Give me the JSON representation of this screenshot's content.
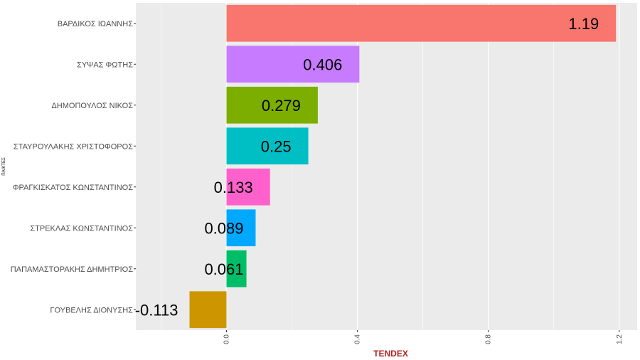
{
  "chart_data": {
    "type": "bar",
    "orientation": "horizontal",
    "title": "",
    "xlabel": "TENDEX",
    "ylabel": "ΠΑΙΚΤΕΣ",
    "xlim": [
      -0.113,
      1.19
    ],
    "x_ticks": [
      "0.0",
      "0.4",
      "0.8",
      "1.2"
    ],
    "x_tick_values": [
      0.0,
      0.4,
      0.8,
      1.2
    ],
    "grid": true,
    "legend": "none",
    "categories": [
      "ΒΑΡΔΙΚΟΣ ΙΩΑΝΝΗΣ",
      "ΣΥΨΑΣ ΦΩΤΗΣ",
      "ΔΗΜΟΠΟΥΛΟΣ ΝΙΚΟΣ",
      "ΣΤΑΥΡΟΥΛΑΚΗΣ ΧΡΙΣΤΟΦΟΡΟΣ",
      "ΦΡΑΓΚΙΣΚΑΤΟΣ ΚΩΝΣΤΑΝΤΙΝΟΣ",
      "ΣΤΡΕΚΛΑΣ ΚΩΝΣΤΑΝΤΙΝΟΣ",
      "ΠΑΠΑΜΑΣΤΟΡΑΚΗΣ ΔΗΜΗΤΡΙΟΣ",
      "ΓΟΥΒΕΛΗΣ ΔΙΟΝΥΣΗΣ"
    ],
    "values": [
      1.19,
      0.406,
      0.279,
      0.25,
      0.133,
      0.089,
      0.061,
      -0.113
    ],
    "value_labels": [
      "1.19",
      "0.406",
      "0.279",
      "0.25",
      "0.133",
      "0.089",
      "0.061",
      "-0.113"
    ],
    "colors": [
      "#F8766D",
      "#C77CFF",
      "#7CAE00",
      "#00BFC4",
      "#FF61CC",
      "#00A9FF",
      "#00BE67",
      "#CD9600"
    ],
    "panel_color": "#EBEBEB",
    "grid_color": "#FFFFFF",
    "xlabel_color": "#B22222"
  }
}
